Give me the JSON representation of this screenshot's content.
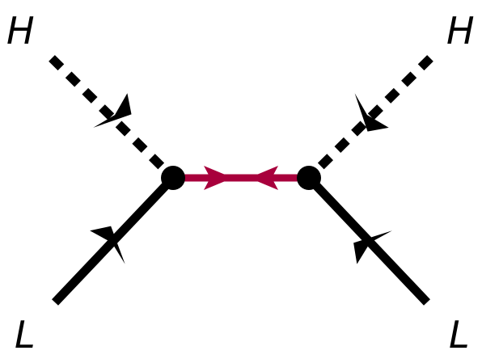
{
  "diagram": {
    "labels": {
      "top_left": "H",
      "top_right": "H",
      "bottom_left": "L",
      "bottom_right": "L"
    },
    "colors": {
      "line": "#000000",
      "propagator": "#a8003c",
      "background": "#ffffff"
    },
    "lines": {
      "higgs_style": "dashed",
      "lepton_style": "solid",
      "propagator_style": "solid"
    },
    "icons": {
      "vertex": "filled-circle",
      "arrow": "triangle-arrowhead"
    }
  }
}
